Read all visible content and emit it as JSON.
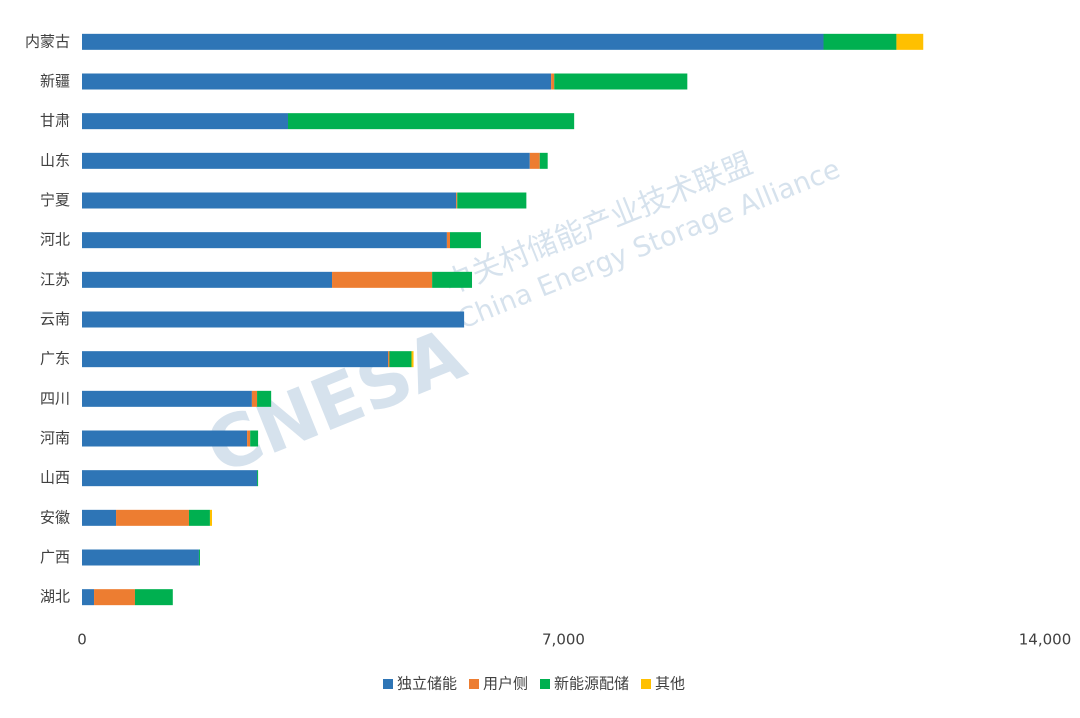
{
  "chart_data": {
    "type": "bar",
    "orientation": "horizontal",
    "stacked": true,
    "categories": [
      "内蒙古",
      "新疆",
      "甘肃",
      "山东",
      "宁夏",
      "河北",
      "江苏",
      "云南",
      "广东",
      "四川",
      "河南",
      "山西",
      "安徽",
      "广西",
      "湖北"
    ],
    "series": [
      {
        "name": "独立储能",
        "color": "#2e75b6",
        "values": [
          10780,
          6820,
          2995,
          6510,
          5440,
          5305,
          3635,
          5555,
          4450,
          2470,
          2400,
          2545,
          495,
          1700,
          175
        ]
      },
      {
        "name": "用户侧",
        "color": "#ed7d31",
        "values": [
          0,
          45,
          0,
          145,
          15,
          45,
          1455,
          0,
          20,
          75,
          45,
          0,
          1060,
          0,
          595
        ]
      },
      {
        "name": "新能源配储",
        "color": "#00b050",
        "values": [
          1060,
          1935,
          4160,
          115,
          1005,
          450,
          580,
          0,
          320,
          205,
          115,
          15,
          305,
          15,
          550
        ]
      },
      {
        "name": "其他",
        "color": "#ffc000",
        "values": [
          390,
          0,
          0,
          0,
          0,
          0,
          0,
          0,
          30,
          0,
          0,
          0,
          30,
          0,
          0
        ]
      }
    ],
    "xlim": [
      0,
      14000
    ],
    "xticks": [
      0,
      {
        "value": 7000,
        "label": "7,000"
      },
      {
        "value": 14000,
        "label": "14,000"
      }
    ],
    "grid": false,
    "legend": "bottom"
  },
  "watermark": {
    "logo": "CNESA",
    "name": "中关村储能产业技术联盟",
    "english": "China Energy Storage Alliance"
  }
}
